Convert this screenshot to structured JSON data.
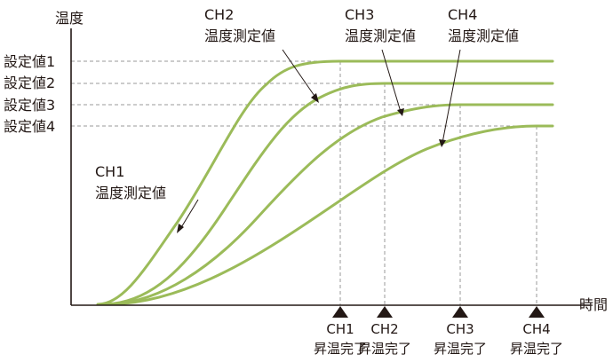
{
  "axes": {
    "y_label": "温度",
    "x_label": "時間"
  },
  "setpoints": [
    "設定値1",
    "設定値2",
    "設定値3",
    "設定値4"
  ],
  "channel_labels": [
    {
      "channel": "CH1",
      "text": "温度測定値"
    },
    {
      "channel": "CH2",
      "text": "温度測定値"
    },
    {
      "channel": "CH3",
      "text": "温度測定値"
    },
    {
      "channel": "CH4",
      "text": "温度測定値"
    }
  ],
  "completion_markers": [
    {
      "channel": "CH1",
      "text": "昇温完了"
    },
    {
      "channel": "CH2",
      "text": "昇温完了"
    },
    {
      "channel": "CH3",
      "text": "昇温完了"
    },
    {
      "channel": "CH4",
      "text": "昇温完了"
    }
  ],
  "colors": {
    "curve": "#9bbb59",
    "axis": "#231815",
    "guide": "#9a9a9a"
  }
}
